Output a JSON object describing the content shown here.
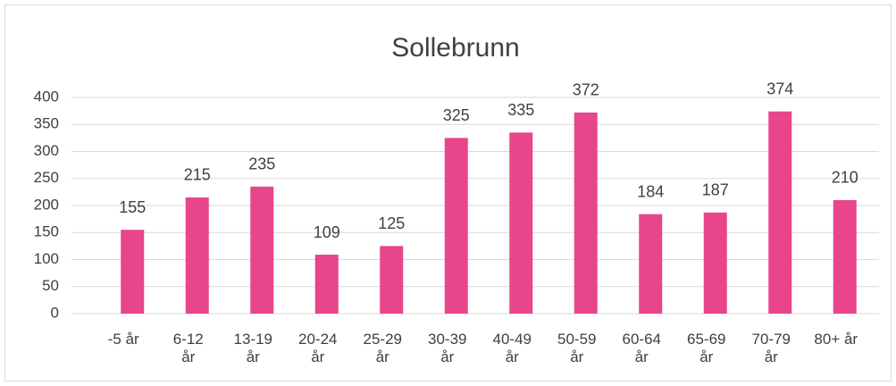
{
  "chart_data": {
    "type": "bar",
    "title": "Sollebrunn",
    "categories": [
      "-5 år",
      "6-12 år",
      "13-19 år",
      "20-24 år",
      "25-29 år",
      "30-39 år",
      "40-49 år",
      "50-59 år",
      "60-64 år",
      "65-69 år",
      "70-79 år",
      "80+ år"
    ],
    "values": [
      155,
      215,
      235,
      109,
      125,
      325,
      335,
      372,
      184,
      187,
      374,
      210
    ],
    "color": "#e8458b",
    "ylim": [
      0,
      400
    ],
    "yticks": [
      0,
      50,
      100,
      150,
      200,
      250,
      300,
      350,
      400
    ],
    "grid": true
  }
}
